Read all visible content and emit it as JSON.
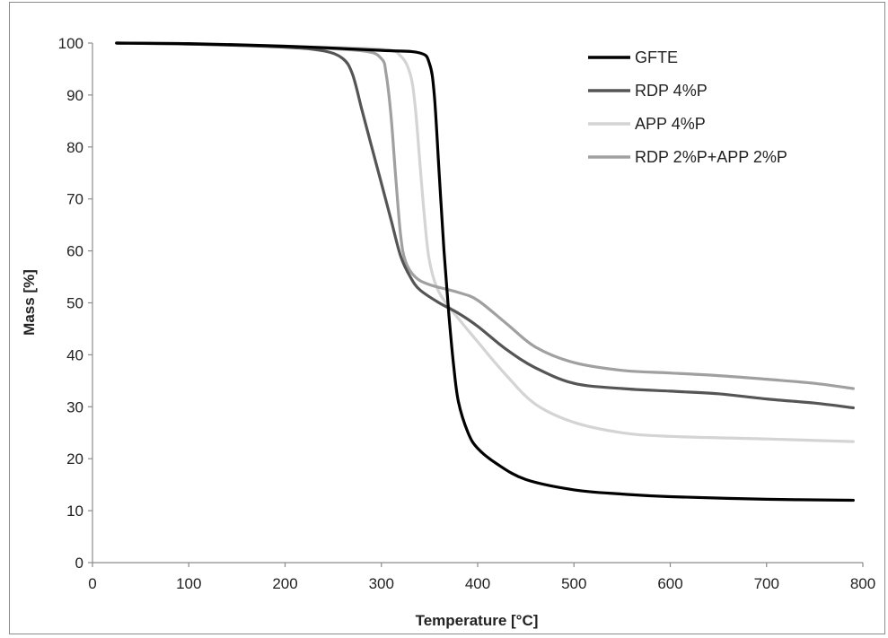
{
  "chart_data": {
    "type": "line",
    "title": "",
    "xlabel": "Temperature [°C]",
    "ylabel": "Mass [%]",
    "xlim": [
      0,
      800
    ],
    "ylim": [
      0,
      100
    ],
    "xticks": [
      0,
      100,
      200,
      300,
      400,
      500,
      600,
      700,
      800
    ],
    "yticks": [
      0,
      10,
      20,
      30,
      40,
      50,
      60,
      70,
      80,
      90,
      100
    ],
    "grid": false,
    "legend_position": "top-right",
    "series": [
      {
        "name": "GFTE",
        "color": "#000000",
        "points": [
          [
            25,
            100
          ],
          [
            100,
            99.9
          ],
          [
            200,
            99.4
          ],
          [
            300,
            98.6
          ],
          [
            340,
            98.1
          ],
          [
            350,
            96
          ],
          [
            355,
            90
          ],
          [
            360,
            75
          ],
          [
            365,
            60
          ],
          [
            370,
            48
          ],
          [
            375,
            38
          ],
          [
            380,
            31
          ],
          [
            390,
            25
          ],
          [
            400,
            22
          ],
          [
            420,
            19
          ],
          [
            450,
            16
          ],
          [
            500,
            14
          ],
          [
            550,
            13.2
          ],
          [
            600,
            12.7
          ],
          [
            700,
            12.2
          ],
          [
            790,
            12
          ]
        ]
      },
      {
        "name": "RDP 4%P",
        "color": "#555555",
        "points": [
          [
            25,
            100
          ],
          [
            100,
            99.8
          ],
          [
            200,
            99.2
          ],
          [
            240,
            98.5
          ],
          [
            260,
            97
          ],
          [
            270,
            94
          ],
          [
            280,
            87
          ],
          [
            290,
            80
          ],
          [
            300,
            73
          ],
          [
            310,
            66
          ],
          [
            320,
            59
          ],
          [
            330,
            55
          ],
          [
            340,
            52.5
          ],
          [
            360,
            50
          ],
          [
            380,
            48
          ],
          [
            400,
            45.5
          ],
          [
            430,
            41
          ],
          [
            460,
            37.5
          ],
          [
            500,
            34.5
          ],
          [
            550,
            33.5
          ],
          [
            600,
            33
          ],
          [
            650,
            32.5
          ],
          [
            700,
            31.5
          ],
          [
            750,
            30.7
          ],
          [
            790,
            29.8
          ]
        ]
      },
      {
        "name": "APP 4%P",
        "color": "#d4d4d4",
        "points": [
          [
            25,
            100
          ],
          [
            100,
            99.8
          ],
          [
            200,
            99.4
          ],
          [
            300,
            98.8
          ],
          [
            320,
            97.5
          ],
          [
            330,
            94
          ],
          [
            335,
            88
          ],
          [
            340,
            77
          ],
          [
            345,
            66
          ],
          [
            350,
            58
          ],
          [
            360,
            52
          ],
          [
            380,
            47
          ],
          [
            400,
            42.5
          ],
          [
            430,
            36
          ],
          [
            460,
            30.5
          ],
          [
            500,
            27
          ],
          [
            550,
            25
          ],
          [
            600,
            24.3
          ],
          [
            700,
            23.8
          ],
          [
            790,
            23.3
          ]
        ]
      },
      {
        "name": "RDP 2%P+APP 2%P",
        "color": "#a0a0a0",
        "points": [
          [
            25,
            100
          ],
          [
            100,
            99.8
          ],
          [
            200,
            99.3
          ],
          [
            280,
            98.5
          ],
          [
            300,
            97
          ],
          [
            305,
            94
          ],
          [
            310,
            86
          ],
          [
            315,
            74
          ],
          [
            320,
            63
          ],
          [
            325,
            58
          ],
          [
            335,
            55
          ],
          [
            350,
            53.5
          ],
          [
            380,
            52
          ],
          [
            400,
            50.5
          ],
          [
            430,
            46
          ],
          [
            460,
            41.5
          ],
          [
            500,
            38.5
          ],
          [
            550,
            37
          ],
          [
            600,
            36.5
          ],
          [
            650,
            36
          ],
          [
            700,
            35.3
          ],
          [
            750,
            34.5
          ],
          [
            790,
            33.5
          ]
        ]
      }
    ]
  }
}
